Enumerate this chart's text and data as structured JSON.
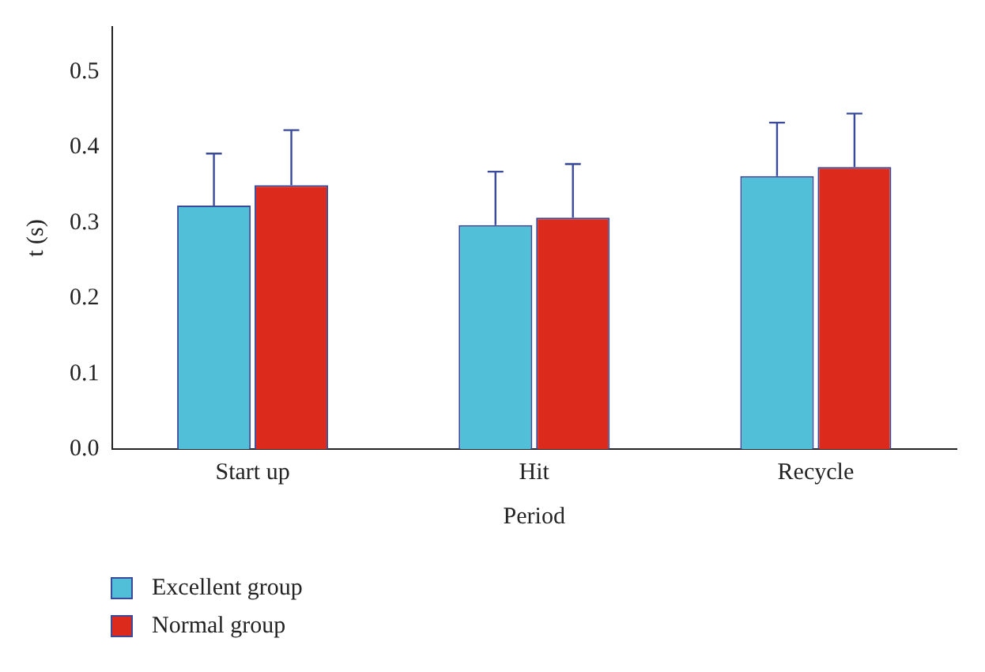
{
  "chart_data": {
    "type": "bar",
    "xlabel": "Period",
    "ylabel": "t (s)",
    "categories": [
      "Start up",
      "Hit",
      "Recycle"
    ],
    "series": [
      {
        "name": "Excellent group",
        "color": "#52bfd8",
        "values": [
          0.323,
          0.297,
          0.362
        ],
        "errors": [
          [
            0.323,
            0.392
          ],
          [
            0.297,
            0.368
          ],
          [
            0.362,
            0.433
          ]
        ]
      },
      {
        "name": "Normal group",
        "color": "#dc2a1c",
        "values": [
          0.35,
          0.307,
          0.374
        ],
        "errors": [
          [
            0.35,
            0.423
          ],
          [
            0.307,
            0.378
          ],
          [
            0.374,
            0.445
          ]
        ]
      }
    ],
    "ylim": [
      0,
      0.56
    ],
    "yticks": [
      {
        "value": 0,
        "label": "0.0"
      },
      {
        "value": 0.1,
        "label": "0.1"
      },
      {
        "value": 0.2,
        "label": "0.2"
      },
      {
        "value": 0.3,
        "label": "0.3"
      },
      {
        "value": 0.4,
        "label": "0.4"
      },
      {
        "value": 0.5,
        "label": "0.5"
      }
    ],
    "grid": false,
    "legend": "bottom left"
  }
}
